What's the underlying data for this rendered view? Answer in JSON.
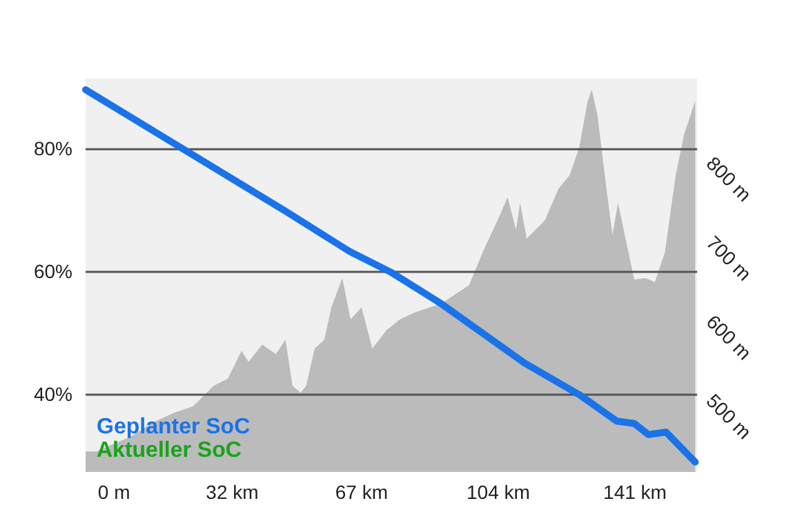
{
  "chart_data": {
    "type": "line",
    "xlim": [
      -7.5,
      158
    ],
    "xticks": [
      {
        "value": 0,
        "label": "0 m"
      },
      {
        "value": 32,
        "label": "32 km"
      },
      {
        "value": 67,
        "label": "67 km"
      },
      {
        "value": 104,
        "label": "104 km"
      },
      {
        "value": 141,
        "label": "141 km"
      }
    ],
    "ylim": [
      27.4,
      91.5
    ],
    "yticks": [
      {
        "value": 40,
        "label": "40%"
      },
      {
        "value": 60,
        "label": "60%"
      },
      {
        "value": 80,
        "label": "80%"
      }
    ],
    "y2lim": [
      430,
      927
    ],
    "y2ticks": [
      {
        "value": 500,
        "label": "500 m"
      },
      {
        "value": 600,
        "label": "600 m"
      },
      {
        "value": 700,
        "label": "700 m"
      },
      {
        "value": 800,
        "label": "800 m"
      }
    ],
    "grid": "y",
    "legend": "bottom left",
    "series": [
      {
        "type": "area",
        "axis": "y2",
        "color": "#bbbbbb",
        "x": [
          -7.5,
          -4.5,
          -0.7,
          4.9,
          10.4,
          16.0,
          21.6,
          27.2,
          31.0,
          34.7,
          36.6,
          40.3,
          44.0,
          46.6,
          48.5,
          50.7,
          52.2,
          54.5,
          57.1,
          59.0,
          62.0,
          64.2,
          67.2,
          70.1,
          73.9,
          77.6,
          81.3,
          88.8,
          96.3,
          100.0,
          104.5,
          106.7,
          109.0,
          110.1,
          111.9,
          116.8,
          120.5,
          123.5,
          126.1,
          128.4,
          129.5,
          131.0,
          133.6,
          135.1,
          136.6,
          138.4,
          141.0,
          144.0,
          146.6,
          149.3,
          152.2,
          154.5,
          157.5
        ],
        "values": [
          456,
          456,
          464,
          475,
          492,
          504,
          513,
          539,
          548,
          583,
          569,
          591,
          579,
          597,
          539,
          530,
          539,
          586,
          597,
          638,
          675,
          623,
          638,
          586,
          609,
          623,
          631,
          643,
          666,
          708,
          753,
          777,
          736,
          770,
          725,
          748,
          788,
          805,
          840,
          899,
          913,
          882,
          783,
          730,
          770,
          730,
          673,
          675,
          670,
          708,
          805,
          857,
          899
        ]
      },
      {
        "name": "Geplanter SoC",
        "color": "#1a73e8",
        "x": [
          -7.5,
          19,
          46.6,
          63.8,
          75,
          88.8,
          111.2,
          126.1,
          136.2,
          141,
          144.8,
          149.6,
          157.5
        ],
        "values": [
          89.7,
          80,
          69.9,
          63.4,
          60,
          54.8,
          45.2,
          40,
          35.7,
          35.3,
          33.5,
          33.9,
          29.0
        ]
      },
      {
        "name": "Aktueller SoC",
        "color": "#1aa31a"
      }
    ]
  }
}
